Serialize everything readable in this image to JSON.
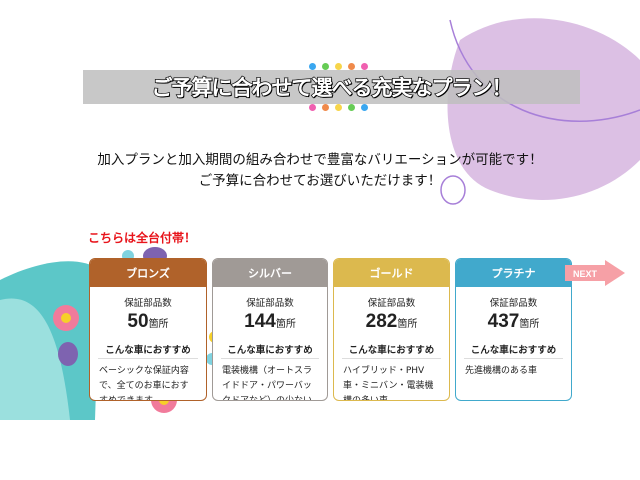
{
  "title": "ご予算に合わせて選べる充実なプラン！",
  "dots_top": [
    "#3aa7f0",
    "#66cc55",
    "#f7d54a",
    "#f08a4b",
    "#f060b0"
  ],
  "dots_bottom": [
    "#f060b0",
    "#f08a4b",
    "#f7d54a",
    "#66cc55",
    "#3aa7f0"
  ],
  "intro": {
    "line1": "加入プランと加入期間の組み合わせで豊富なバリエーションが可能です！",
    "line2": "ご予算に合わせてお選びいただけます！"
  },
  "badge": "こちらは全台付帯！",
  "next_label": "NEXT",
  "plans": [
    {
      "name": "ブロンズ",
      "color": "#b0622a",
      "parts_label": "保証部品数",
      "count": "50",
      "unit": "箇所",
      "rec_label": "こんな車におすすめ",
      "desc": "ベーシックな保証内容で、全てのお車におすすめできます。"
    },
    {
      "name": "シルバー",
      "color": "#a09a96",
      "parts_label": "保証部品数",
      "count": "144",
      "unit": "箇所",
      "rec_label": "こんな車におすすめ",
      "desc": "電装機構（オートスライドドア・パワーバックドアなど）の少ない車"
    },
    {
      "name": "ゴールド",
      "color": "#dcb94e",
      "parts_label": "保証部品数",
      "count": "282",
      "unit": "箇所",
      "rec_label": "こんな車におすすめ",
      "desc": "ハイブリッド・PHV車・ミニバン・電装機構の多い車"
    },
    {
      "name": "プラチナ",
      "color": "#41a9cc",
      "parts_label": "保証部品数",
      "count": "437",
      "unit": "箇所",
      "rec_label": "こんな車におすすめ",
      "desc": "先進機構のある車"
    }
  ]
}
